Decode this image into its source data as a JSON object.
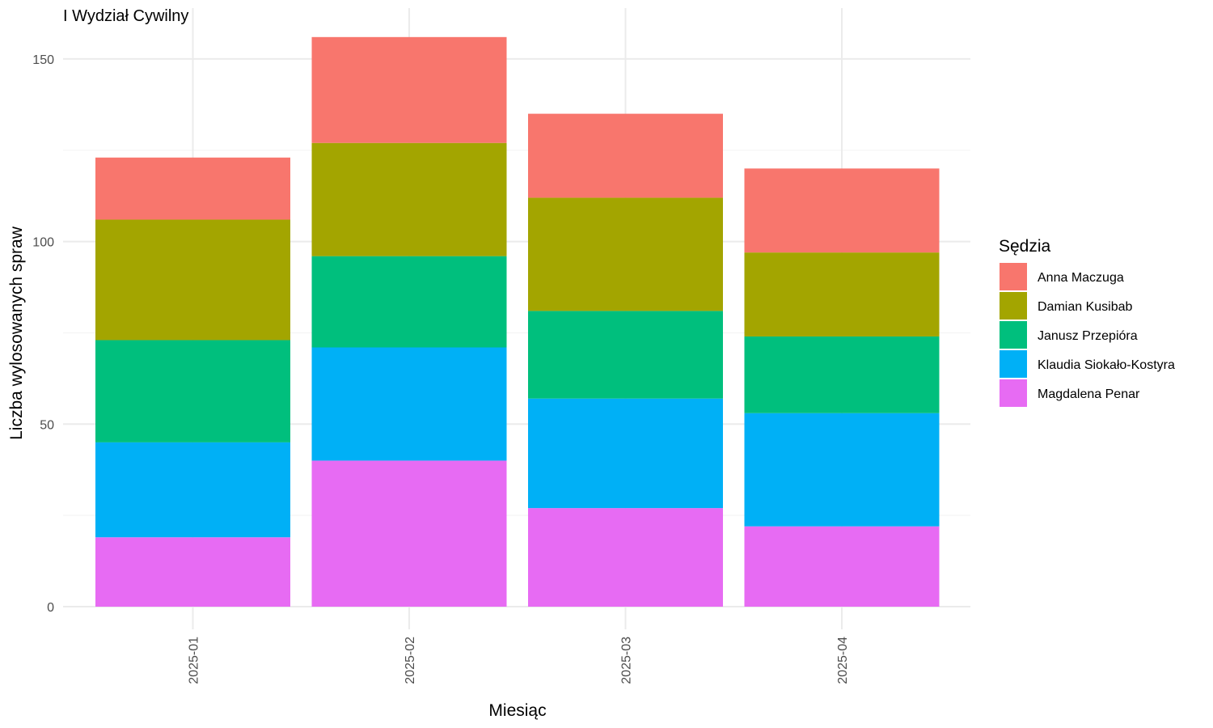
{
  "chart_data": {
    "type": "bar",
    "stacked": true,
    "title": "I Wydział Cywilny",
    "xlabel": "Miesiąc",
    "ylabel": "Liczba wylosowanych spraw",
    "ylim": [
      0,
      156
    ],
    "yticks": [
      0,
      50,
      100,
      150
    ],
    "grid": true,
    "legend_title": "Sędzia",
    "legend_position": "right",
    "categories": [
      "2025-01",
      "2025-02",
      "2025-03",
      "2025-04"
    ],
    "series": [
      {
        "name": "Magdalena Penar",
        "color": "#E76BF3",
        "values": [
          19,
          40,
          27,
          22
        ]
      },
      {
        "name": "Klaudia Siokało-Kostyra",
        "color": "#00B0F6",
        "values": [
          26,
          31,
          30,
          31
        ]
      },
      {
        "name": "Janusz Przepióra",
        "color": "#00BF7D",
        "values": [
          28,
          25,
          24,
          21
        ]
      },
      {
        "name": "Damian Kusibab",
        "color": "#A3A500",
        "values": [
          33,
          31,
          31,
          23
        ]
      },
      {
        "name": "Anna Maczuga",
        "color": "#F8766D",
        "values": [
          17,
          29,
          23,
          23
        ]
      }
    ]
  }
}
